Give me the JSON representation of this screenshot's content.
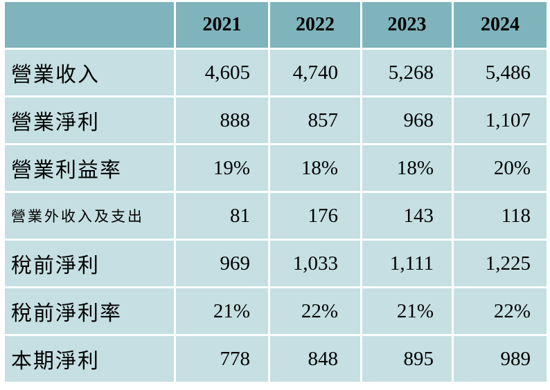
{
  "chart_data": {
    "type": "table",
    "columns": [
      "",
      "2021",
      "2022",
      "2023",
      "2024"
    ],
    "rows": [
      {
        "label": "營業收入",
        "values": [
          "4,605",
          "4,740",
          "5,268",
          "5,486"
        ]
      },
      {
        "label": "營業淨利",
        "values": [
          "888",
          "857",
          "968",
          "1,107"
        ]
      },
      {
        "label": "營業利益率",
        "values": [
          "19%",
          "18%",
          "18%",
          "20%"
        ]
      },
      {
        "label": "營業外收入及支出",
        "values": [
          "81",
          "176",
          "143",
          "118"
        ]
      },
      {
        "label": "稅前淨利",
        "values": [
          "969",
          "1,033",
          "1,111",
          "1,225"
        ]
      },
      {
        "label": "稅前淨利率",
        "values": [
          "21%",
          "22%",
          "21%",
          "22%"
        ]
      },
      {
        "label": "本期淨利",
        "values": [
          "778",
          "848",
          "895",
          "989"
        ]
      }
    ]
  },
  "colors": {
    "header_bg": "#7fb4bc",
    "cell_bg": "#c5dfe2",
    "grid": "#ffffff"
  }
}
